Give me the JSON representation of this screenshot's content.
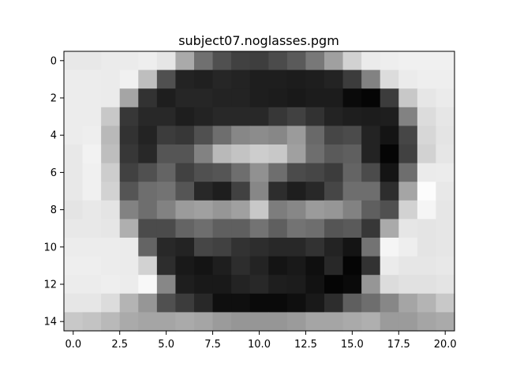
{
  "chart_data": {
    "type": "heatmap",
    "title": "subject07.noglasses.pgm",
    "xlabel": "",
    "ylabel": "",
    "colormap": "gray",
    "value_range": [
      0,
      255
    ],
    "xlim": [
      -0.5,
      20.5
    ],
    "ylim": [
      14.5,
      -0.5
    ],
    "x_ticks": [
      0,
      2.5,
      5,
      7.5,
      10,
      12.5,
      15,
      17.5,
      20
    ],
    "x_tick_labels": [
      "0.0",
      "2.5",
      "5.0",
      "7.5",
      "10.0",
      "12.5",
      "15.0",
      "17.5",
      "20.0"
    ],
    "y_ticks": [
      0,
      2,
      4,
      6,
      8,
      10,
      12,
      14
    ],
    "y_tick_labels": [
      "0",
      "2",
      "4",
      "6",
      "8",
      "10",
      "12",
      "14"
    ],
    "grid": false,
    "values": [
      [
        232,
        232,
        235,
        235,
        238,
        230,
        170,
        112,
        80,
        65,
        62,
        75,
        90,
        120,
        160,
        210,
        235,
        238,
        240,
        240,
        240
      ],
      [
        236,
        236,
        235,
        240,
        190,
        80,
        35,
        32,
        38,
        35,
        30,
        30,
        28,
        30,
        35,
        60,
        130,
        220,
        235,
        238,
        238
      ],
      [
        236,
        236,
        235,
        165,
        50,
        30,
        38,
        38,
        35,
        35,
        30,
        28,
        25,
        28,
        28,
        10,
        5,
        60,
        200,
        230,
        235
      ],
      [
        236,
        236,
        200,
        55,
        40,
        40,
        30,
        35,
        40,
        40,
        40,
        55,
        65,
        50,
        35,
        30,
        28,
        30,
        130,
        220,
        230
      ],
      [
        236,
        238,
        185,
        50,
        35,
        60,
        55,
        80,
        110,
        135,
        140,
        135,
        155,
        105,
        70,
        75,
        35,
        20,
        70,
        215,
        228
      ],
      [
        232,
        242,
        190,
        55,
        40,
        85,
        85,
        130,
        185,
        195,
        205,
        200,
        160,
        110,
        90,
        95,
        35,
        5,
        65,
        210,
        230
      ],
      [
        232,
        240,
        205,
        65,
        80,
        100,
        65,
        80,
        85,
        110,
        145,
        110,
        75,
        70,
        60,
        100,
        75,
        20,
        110,
        235,
        236
      ],
      [
        232,
        240,
        210,
        85,
        110,
        115,
        85,
        40,
        30,
        65,
        135,
        45,
        30,
        40,
        70,
        110,
        110,
        45,
        165,
        252,
        232
      ],
      [
        228,
        232,
        228,
        130,
        110,
        130,
        155,
        160,
        150,
        160,
        200,
        125,
        135,
        155,
        150,
        130,
        95,
        80,
        210,
        245,
        230
      ],
      [
        232,
        232,
        230,
        175,
        75,
        75,
        100,
        110,
        95,
        95,
        115,
        95,
        115,
        110,
        85,
        90,
        55,
        170,
        230,
        228,
        230
      ],
      [
        236,
        236,
        236,
        235,
        100,
        40,
        35,
        70,
        65,
        50,
        45,
        40,
        40,
        50,
        35,
        20,
        115,
        245,
        238,
        228,
        230
      ],
      [
        238,
        238,
        236,
        235,
        210,
        45,
        25,
        20,
        30,
        45,
        35,
        20,
        25,
        15,
        40,
        5,
        50,
        235,
        230,
        230,
        232
      ],
      [
        236,
        236,
        238,
        236,
        248,
        135,
        30,
        25,
        25,
        35,
        40,
        30,
        28,
        18,
        5,
        10,
        150,
        220,
        225,
        225,
        228
      ],
      [
        230,
        230,
        220,
        180,
        150,
        80,
        60,
        40,
        15,
        15,
        10,
        10,
        15,
        25,
        45,
        95,
        110,
        135,
        165,
        180,
        200
      ],
      [
        200,
        195,
        185,
        170,
        165,
        165,
        170,
        165,
        155,
        150,
        150,
        150,
        155,
        165,
        165,
        170,
        175,
        155,
        155,
        165,
        170
      ]
    ]
  }
}
